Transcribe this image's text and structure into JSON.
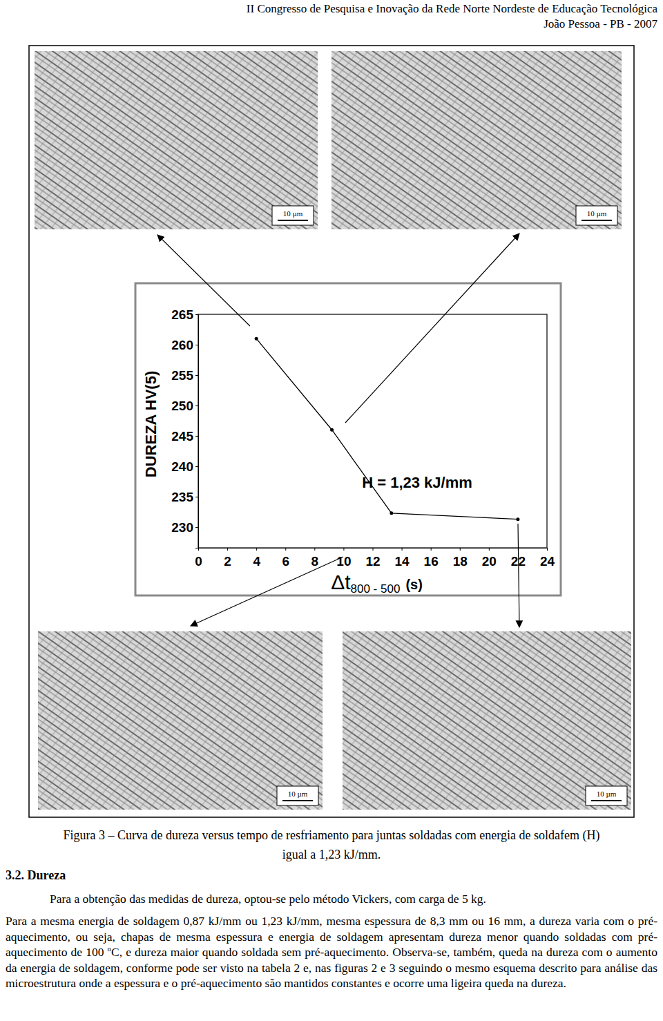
{
  "header": [
    "II Congresso de Pesquisa e Inovação da Rede Norte Nordeste de Educação Tecnológica",
    "João Pessoa - PB - 2007"
  ],
  "figure": {
    "scale_bars": [
      "10 µm",
      "10 µm",
      "10 µm",
      "10 µm"
    ]
  },
  "chart_data": {
    "type": "line",
    "ylabel": "DUREZA HV(5)",
    "xlabel": [
      "Δt",
      "800 - 500",
      "(s)"
    ],
    "annotation": "H = 1,23 kJ/mm",
    "x": [
      4,
      9.2,
      13.3,
      22
    ],
    "series": [
      {
        "values": [
          261,
          246,
          232.3,
          231.3
        ],
        "color": "#000000",
        "marker": "circle"
      }
    ],
    "xlim": [
      0,
      24
    ],
    "xticks": [
      0,
      2,
      4,
      6,
      8,
      10,
      12,
      14,
      16,
      18,
      20,
      22,
      24
    ],
    "ylim": [
      226.6,
      265
    ],
    "yticks": [
      230,
      235,
      240,
      245,
      250,
      255,
      260,
      265
    ],
    "grid": false
  },
  "caption": [
    "Figura 3 – Curva de dureza versus tempo de resfriamento para juntas soldadas com energia de soldafem (H)",
    "igual a 1,23 kJ/mm."
  ],
  "section": "3.2. Dureza",
  "paragraphs": [
    [
      "Para a obtenção das medidas de dureza, optou-se pelo método Vickers, com carga de 5 kg."
    ],
    [
      "Para a mesma energia de soldagem 0,87 kJ/mm ou 1,23 kJ/mm, mesma espessura de 8,3 mm ou 16 mm, a dureza varia com o pré-aquecimento, ou seja, chapas de mesma espessura e energia de soldagem apresentam dureza menor quando soldadas com pré-aquecimento de 100 ",
      "o",
      "C, e dureza maior quando soldada sem pré-aquecimento. Observa-se, também, queda na dureza com o aumento da energia de soldagem, conforme pode ser visto na tabela 2 e, nas figuras 2 e 3 seguindo o mesmo esquema descrito para análise das microestrutura onde a espessura e o pré-aquecimento são mantidos constantes e ocorre uma ligeira queda na dureza."
    ]
  ]
}
